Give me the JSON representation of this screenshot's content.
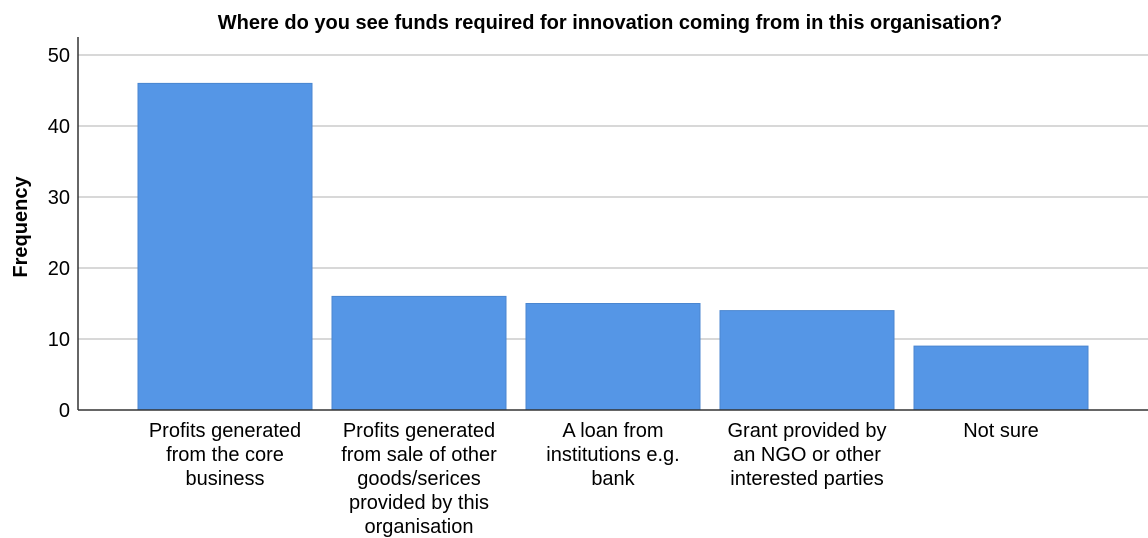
{
  "chart_data": {
    "type": "bar",
    "title": "Where do you see funds required for innovation coming from in this organisation?",
    "xlabel": "",
    "ylabel": "Frequency",
    "ylim": [
      0,
      50
    ],
    "yticks": [
      0,
      10,
      20,
      30,
      40,
      50
    ],
    "grid": true,
    "categories": [
      [
        "Profits generated",
        "from the core",
        "business"
      ],
      [
        "Profits generated",
        "from sale of other",
        "goods/serices",
        "provided by this",
        "organisation"
      ],
      [
        "A loan from",
        "institutions e.g.",
        "bank"
      ],
      [
        "Grant provided by",
        "an NGO or other",
        "interested parties"
      ],
      [
        "Not sure"
      ]
    ],
    "values": [
      46,
      16,
      15,
      14,
      9
    ],
    "bar_color": "#5596e6",
    "grid_color": "#cccccc",
    "axis_color": "#333333"
  }
}
